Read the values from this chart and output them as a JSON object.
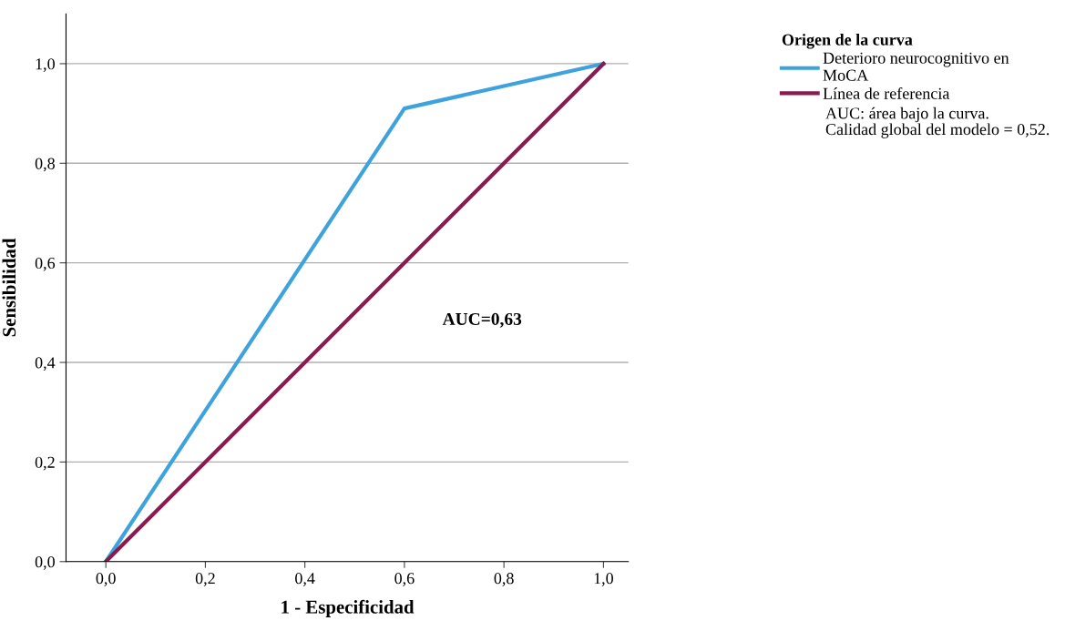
{
  "chart_data": {
    "type": "line",
    "xlabel": "1 - Especificidad",
    "ylabel": "Sensibilidad",
    "legend_title": "Origen de la curva",
    "series": [
      {
        "name": "Deterioro neurocognitivo en\nMoCA",
        "color": "#3ea3dc",
        "x": [
          0,
          0.6,
          1
        ],
        "values": [
          0,
          0.91,
          1
        ]
      },
      {
        "name": "Línea de referencia",
        "color": "#8b1a4e",
        "x": [
          0,
          1
        ],
        "values": [
          0,
          1
        ]
      }
    ],
    "xlim": [
      -0.08,
      1.05
    ],
    "ylim": [
      0,
      1.1
    ],
    "xticks": [
      {
        "value": 0,
        "label": "0,0"
      },
      {
        "value": 0.2,
        "label": "0,2"
      },
      {
        "value": 0.4,
        "label": "0,4"
      },
      {
        "value": 0.6,
        "label": "0,6"
      },
      {
        "value": 0.8,
        "label": "0,8"
      },
      {
        "value": 1,
        "label": "1,0"
      }
    ],
    "yticks": [
      {
        "value": 0,
        "label": "0,0"
      },
      {
        "value": 0.2,
        "label": "0,2"
      },
      {
        "value": 0.4,
        "label": "0,4"
      },
      {
        "value": 0.6,
        "label": "0,6"
      },
      {
        "value": 0.8,
        "label": "0,8"
      },
      {
        "value": 1,
        "label": "1,0"
      }
    ],
    "grid": "y",
    "legend": "top right",
    "marker": "none",
    "line_style": "solid",
    "annotations": [
      "AUC=0,63",
      "AUC: área bajo la curva.",
      "Calidad global del modelo = 0,52."
    ]
  }
}
